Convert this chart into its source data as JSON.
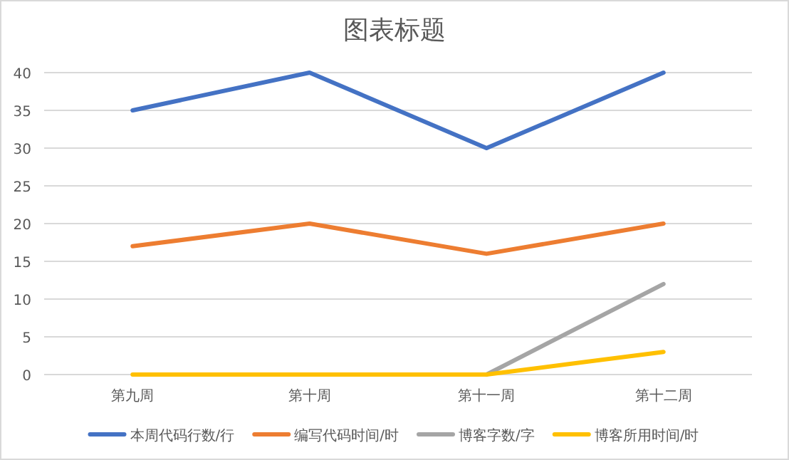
{
  "chart_data": {
    "type": "line",
    "title": "图表标题",
    "categories": [
      "第九周",
      "第十周",
      "第十一周",
      "第十二周"
    ],
    "ylim": [
      0,
      40
    ],
    "yticks": [
      0,
      5,
      10,
      15,
      20,
      25,
      30,
      35,
      40
    ],
    "grid": "y",
    "legend": "bottom",
    "marker": "none",
    "line_style": "solid",
    "series": [
      {
        "name": "本周代码行数/行",
        "color": "#4472c4",
        "values": [
          35,
          40,
          30,
          40
        ]
      },
      {
        "name": "编写代码时间/时",
        "color": "#ed7d31",
        "values": [
          17,
          20,
          16,
          20
        ]
      },
      {
        "name": "博客字数/字",
        "color": "#a5a5a5",
        "values": [
          null,
          null,
          0,
          12
        ]
      },
      {
        "name": "博客所用时间/时",
        "color": "#ffc000",
        "values": [
          0,
          0,
          0,
          3
        ]
      }
    ]
  }
}
